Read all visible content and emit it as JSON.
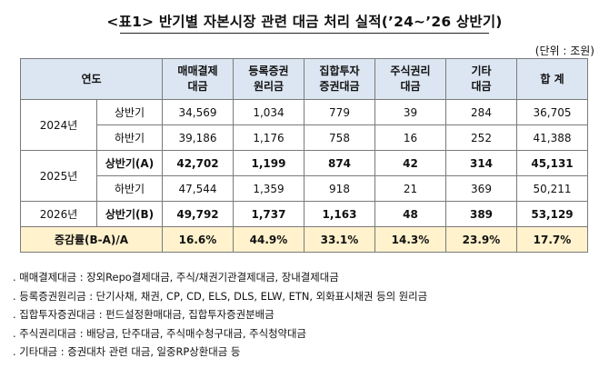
{
  "title": "<표1> 반기별 자본시장 관련 대금 처리 실적(’24~’26 상반기)",
  "unit": "(단위 : 조원)",
  "header": {
    "year": "연도",
    "col1": "매매결제\n대금",
    "col2": "등록증권\n원리금",
    "col3": "집합투자\n증권대금",
    "col4": "주식권리\n대금",
    "col5": "기타\n대금",
    "col6": "합 계"
  },
  "rows": [
    {
      "year": "2024년",
      "half": "상반기",
      "values": [
        "34,569",
        "1,034",
        "779",
        "39",
        "284",
        "36,705"
      ]
    },
    {
      "half": "하반기",
      "values": [
        "39,186",
        "1,176",
        "758",
        "16",
        "252",
        "41,388"
      ]
    },
    {
      "year": "2025년",
      "half": "상반기(A)",
      "values": [
        "42,702",
        "1,199",
        "874",
        "42",
        "314",
        "45,131"
      ]
    },
    {
      "half": "하반기",
      "values": [
        "47,544",
        "1,359",
        "918",
        "21",
        "369",
        "50,211"
      ]
    },
    {
      "year": "2026년",
      "half": "상반기(B)",
      "values": [
        "49,792",
        "1,737",
        "1,163",
        "48",
        "389",
        "53,129"
      ]
    }
  ],
  "rate": {
    "label": "증감률(B-A)/A",
    "values": [
      "16.6%",
      "44.9%",
      "33.1%",
      "14.3%",
      "23.9%",
      "17.7%"
    ]
  },
  "notes": [
    ". 매매결제대금 : 장외Repo결제대금, 주식/채권기관결제대금, 장내결제대금",
    ". 등록증권원리금 : 단기사채, 채권, CP, CD, ELS, DLS, ELW, ETN, 외화표시채권 등의 원리금",
    ". 집합투자증권대금 : 펀드설정환매대금, 집합투자증권분배금",
    ". 주식권리대금 : 배당금, 단주대금, 주식매수청구대금, 주식청약대금",
    ". 기타대금 : 증권대차 관련 대금, 일중RP상환대금 등"
  ],
  "colors": {
    "header_bg": "#dce6f2",
    "rate_bg": "#fff2cc",
    "border": "#7a7a7a"
  }
}
